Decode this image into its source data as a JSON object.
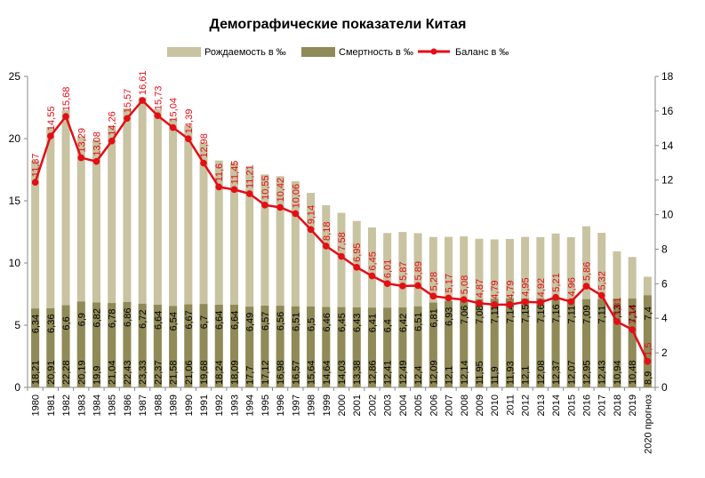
{
  "chart_data": {
    "type": "bar",
    "title": "Демографические показатели Китая",
    "legend_position": "top",
    "grid": false,
    "categories": [
      "1980",
      "1981",
      "1982",
      "1983",
      "1984",
      "1985",
      "1986",
      "1987",
      "1988",
      "1989",
      "1990",
      "1991",
      "1992",
      "1993",
      "1994",
      "1995",
      "1996",
      "1997",
      "1998",
      "1999",
      "2000",
      "2001",
      "2002",
      "2003",
      "2004",
      "2005",
      "2006",
      "2007",
      "2008",
      "2009",
      "2010",
      "2011",
      "2012",
      "2013",
      "2014",
      "2015",
      "2016",
      "2017",
      "2018",
      "2019",
      "2020 прогноз"
    ],
    "y_left": {
      "ticks": [
        "0",
        "5",
        "10",
        "15",
        "20",
        "25"
      ],
      "ylim": [
        0,
        25
      ]
    },
    "y_right": {
      "ticks": [
        "0",
        "2",
        "4",
        "6",
        "8",
        "10",
        "12",
        "14",
        "16",
        "18"
      ],
      "ylim": [
        0,
        18
      ]
    },
    "series": [
      {
        "name": "Рождаемость в ‰",
        "kind": "bar",
        "axis": "left",
        "color": "#c8c3a1",
        "values": [
          18.21,
          20.91,
          22.28,
          20.19,
          19.9,
          21.04,
          22.43,
          23.33,
          22.37,
          21.58,
          21.06,
          19.68,
          18.24,
          18.09,
          17.7,
          17.12,
          16.98,
          16.57,
          15.64,
          14.64,
          14.03,
          13.38,
          12.86,
          12.41,
          12.49,
          12.4,
          12.09,
          12.1,
          12.14,
          11.95,
          11.9,
          11.93,
          12.1,
          12.08,
          12.37,
          12.07,
          12.95,
          12.43,
          10.94,
          10.48,
          8.9
        ],
        "labels": [
          "18,21",
          "20,91",
          "22,28",
          "20,19",
          "19,9",
          "21,04",
          "22,43",
          "23,33",
          "22,37",
          "21,58",
          "21,06",
          "19,68",
          "18,24",
          "18,09",
          "17,7",
          "17,12",
          "16,98",
          "16,57",
          "15,64",
          "14,64",
          "14,03",
          "13,38",
          "12,86",
          "12,41",
          "12,49",
          "12,4",
          "12,09",
          "12,1",
          "12,14",
          "11,95",
          "11,9",
          "11,93",
          "12,1",
          "12,08",
          "12,37",
          "12,07",
          "12,95",
          "12,43",
          "10,94",
          "10,48",
          "8,9"
        ]
      },
      {
        "name": "Смертность в ‰",
        "kind": "bar",
        "axis": "left",
        "color": "#8f8a57",
        "values": [
          6.34,
          6.36,
          6.6,
          6.9,
          6.82,
          6.78,
          6.86,
          6.72,
          6.64,
          6.54,
          6.67,
          6.7,
          6.64,
          6.64,
          6.49,
          6.57,
          6.56,
          6.51,
          6.5,
          6.46,
          6.45,
          6.43,
          6.41,
          6.4,
          6.42,
          6.51,
          6.81,
          6.93,
          7.06,
          7.08,
          7.11,
          7.14,
          7.15,
          7.16,
          7.16,
          7.11,
          7.09,
          7.11,
          7.13,
          7.14,
          7.4
        ],
        "labels": [
          "6,34",
          "6,36",
          "6,6",
          "6,9",
          "6,82",
          "6,78",
          "6,86",
          "6,72",
          "6,64",
          "6,54",
          "6,67",
          "6,7",
          "6,64",
          "6,64",
          "6,49",
          "6,57",
          "6,56",
          "6,51",
          "6,5",
          "6,46",
          "6,45",
          "6,43",
          "6,41",
          "6,4",
          "6,42",
          "6,51",
          "6,81",
          "6,93",
          "7,06",
          "7,08",
          "7,11",
          "7,14",
          "7,15",
          "7,16",
          "7,16",
          "7,11",
          "7,09",
          "7,11",
          "7,13",
          "7,14",
          "7,4"
        ]
      },
      {
        "name": "Баланс в ‰",
        "kind": "line",
        "axis": "right",
        "color": "#e30e16",
        "values": [
          11.87,
          14.55,
          15.68,
          13.29,
          13.08,
          14.26,
          15.57,
          16.61,
          15.73,
          15.04,
          14.39,
          12.98,
          11.6,
          11.45,
          11.21,
          10.55,
          10.42,
          10.06,
          9.14,
          8.18,
          7.58,
          6.95,
          6.45,
          6.01,
          5.87,
          5.89,
          5.28,
          5.17,
          5.08,
          4.87,
          4.79,
          4.79,
          4.95,
          4.92,
          5.21,
          4.96,
          5.86,
          5.32,
          3.81,
          3.34,
          1.5
        ],
        "labels": [
          "11,87",
          "14,55",
          "15,68",
          "13,29",
          "13,08",
          "14,26",
          "15,57",
          "16,61",
          "15,73",
          "15,04",
          "14,39",
          "12,98",
          "11,6",
          "11,45",
          "11,21",
          "10,55",
          "10,42",
          "10,06",
          "9,14",
          "8,18",
          "7,58",
          "6,95",
          "6,45",
          "6,01",
          "5,87",
          "5,89",
          "5,28",
          "5,17",
          "5,08",
          "4,87",
          "4,79",
          "4,79",
          "4,95",
          "4,92",
          "5,21",
          "4,96",
          "5,86",
          "5,32",
          "3,81",
          "3,34",
          "1,5"
        ]
      }
    ]
  }
}
